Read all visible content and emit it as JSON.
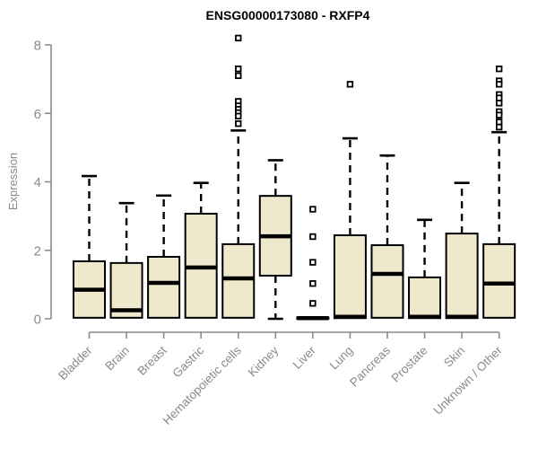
{
  "title": "ENSG00000173080 - RXFP4",
  "ylabel": "Expression",
  "chart_data": {
    "type": "boxplot",
    "title": "ENSG00000173080 - RXFP4",
    "xlabel": "",
    "ylabel": "Expression",
    "ylim": [
      0,
      8
    ],
    "yticks": [
      0,
      2,
      4,
      6,
      8
    ],
    "grid": false,
    "legend": "none",
    "categories": [
      "Bladder",
      "Brain",
      "Breast",
      "Gastric",
      "Hematopoietic cells",
      "Kidney",
      "Liver",
      "Lung",
      "Pancreas",
      "Prostate",
      "Skin",
      "Unknown / Other"
    ],
    "series": [
      {
        "name": "Bladder",
        "whisker_low": null,
        "q1": 0.03,
        "median": 0.85,
        "q3": 1.68,
        "whisker_high": 4.17,
        "outliers": []
      },
      {
        "name": "Brain",
        "whisker_low": null,
        "q1": 0.03,
        "median": 0.25,
        "q3": 1.63,
        "whisker_high": 3.38,
        "outliers": []
      },
      {
        "name": "Breast",
        "whisker_low": null,
        "q1": 0.03,
        "median": 1.05,
        "q3": 1.81,
        "whisker_high": 3.6,
        "outliers": []
      },
      {
        "name": "Gastric",
        "whisker_low": null,
        "q1": 0.03,
        "median": 1.5,
        "q3": 3.07,
        "whisker_high": 3.97,
        "outliers": []
      },
      {
        "name": "Hematopoietic cells",
        "whisker_low": null,
        "q1": 0.03,
        "median": 1.18,
        "q3": 2.18,
        "whisker_high": 5.5,
        "outliers": [
          8.2,
          7.3,
          7.1,
          6.35,
          6.22,
          6.12,
          6.02,
          5.92,
          5.7
        ]
      },
      {
        "name": "Kidney",
        "whisker_low": 0.0,
        "q1": 1.26,
        "median": 2.41,
        "q3": 3.59,
        "whisker_high": 4.63,
        "outliers": []
      },
      {
        "name": "Liver",
        "whisker_low": null,
        "q1": 0.0,
        "median": 0.02,
        "q3": 0.04,
        "whisker_high": null,
        "outliers": [
          3.2,
          2.4,
          1.65,
          1.03,
          0.45
        ]
      },
      {
        "name": "Lung",
        "whisker_low": null,
        "q1": 0.02,
        "median": 0.06,
        "q3": 2.44,
        "whisker_high": 5.27,
        "outliers": [
          6.85
        ]
      },
      {
        "name": "Pancreas",
        "whisker_low": null,
        "q1": 0.03,
        "median": 1.31,
        "q3": 2.15,
        "whisker_high": 4.77,
        "outliers": []
      },
      {
        "name": "Prostate",
        "whisker_low": null,
        "q1": 0.02,
        "median": 0.06,
        "q3": 1.21,
        "whisker_high": 2.89,
        "outliers": []
      },
      {
        "name": "Skin",
        "whisker_low": null,
        "q1": 0.02,
        "median": 0.06,
        "q3": 2.49,
        "whisker_high": 3.97,
        "outliers": []
      },
      {
        "name": "Unknown / Other",
        "whisker_low": null,
        "q1": 0.03,
        "median": 1.03,
        "q3": 2.18,
        "whisker_high": 5.45,
        "outliers": [
          7.3,
          6.95,
          6.85,
          6.55,
          6.45,
          6.3,
          6.05,
          5.95,
          5.75,
          5.6
        ]
      }
    ],
    "colors": {
      "box_fill": "#EEE8CD",
      "box_border": "#000000",
      "median": "#000000",
      "whisker": "#000000",
      "outlier_fill": "#FFFFFF",
      "outlier_border": "#000000",
      "axis": "#8a8a8a",
      "tick_text": "#8a8a8a",
      "title_text": "#000000",
      "background": "#FFFFFF"
    }
  }
}
